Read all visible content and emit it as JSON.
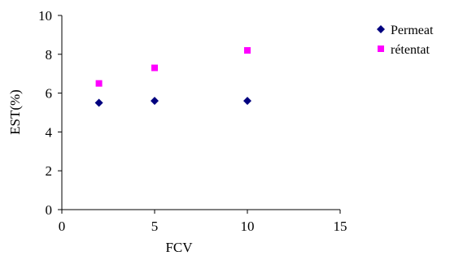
{
  "chart_data": {
    "type": "scatter",
    "title": "",
    "xlabel": "FCV",
    "ylabel": "EST(%)",
    "xlim": [
      0,
      15
    ],
    "ylim": [
      0,
      10
    ],
    "xticks": [
      0,
      5,
      10,
      15
    ],
    "yticks": [
      0,
      2,
      4,
      6,
      8,
      10
    ],
    "grid": false,
    "legend_position": "top-right",
    "series": [
      {
        "name": "Permeat",
        "marker": "diamond",
        "color": "#00007f",
        "points": [
          {
            "x": 2,
            "y": 5.5
          },
          {
            "x": 5,
            "y": 5.6
          },
          {
            "x": 10,
            "y": 5.6
          }
        ]
      },
      {
        "name": "rétentat",
        "marker": "square",
        "color": "#ff00ff",
        "points": [
          {
            "x": 2,
            "y": 6.5
          },
          {
            "x": 5,
            "y": 7.3
          },
          {
            "x": 10,
            "y": 8.2
          }
        ]
      }
    ]
  }
}
